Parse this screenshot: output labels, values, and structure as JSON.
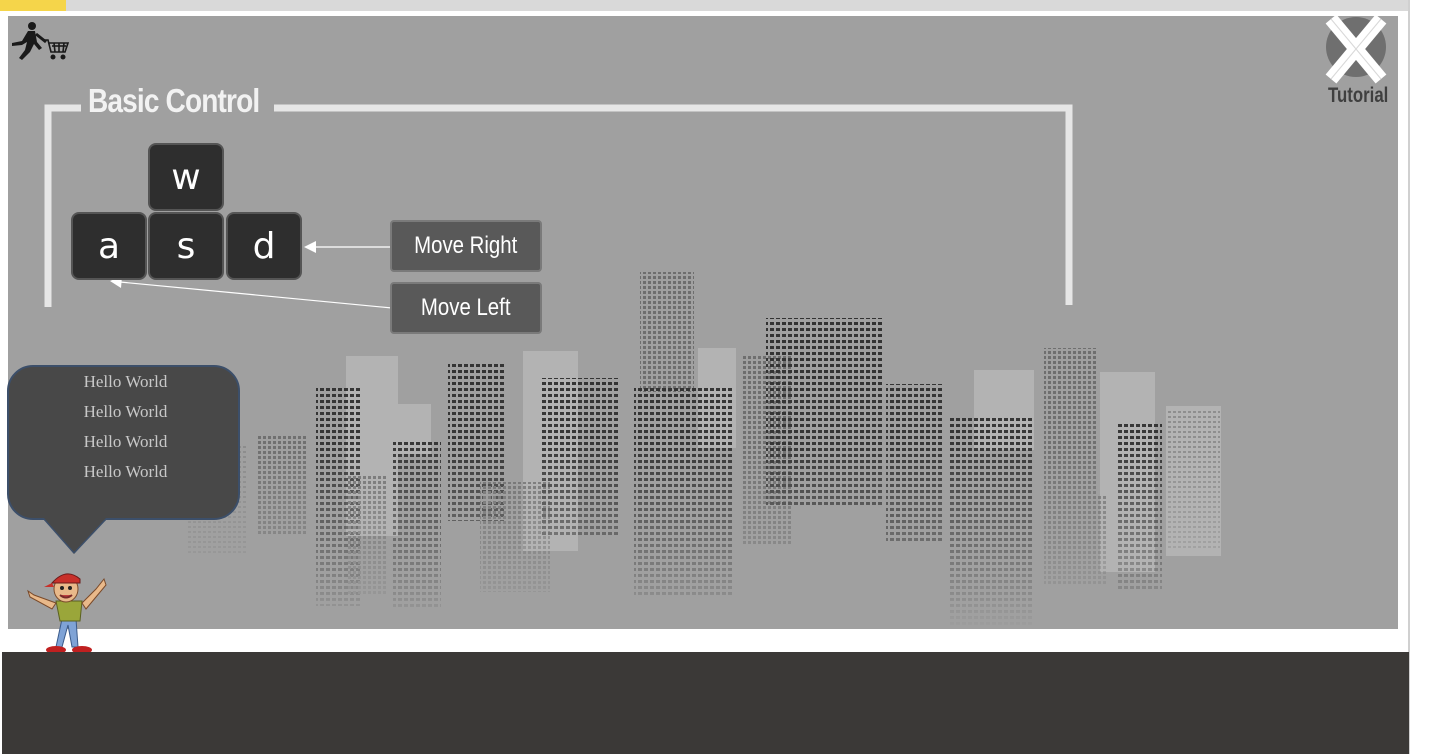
{
  "progress": {
    "fraction": 0.047
  },
  "header": {
    "logo_icon": "runner-with-cart-icon",
    "close_icon": "close-x-icon",
    "tutorial_label": "Tutorial"
  },
  "controls": {
    "title": "Basic Control",
    "keys": {
      "w": "w",
      "a": "a",
      "s": "s",
      "d": "d"
    },
    "move_right_label": "Move Right",
    "move_left_label": "Move Left"
  },
  "speech_bubble": {
    "lines": [
      "Hello World",
      "Hello World",
      "Hello World",
      "Hello World"
    ]
  },
  "mascot": {
    "icon": "cartoon-boy-waving-icon"
  },
  "colors": {
    "accent": "#f5d54a",
    "game_bg": "#a0a0a0",
    "panel_dark": "#3b3937",
    "key_bg": "#2e2e2e"
  }
}
